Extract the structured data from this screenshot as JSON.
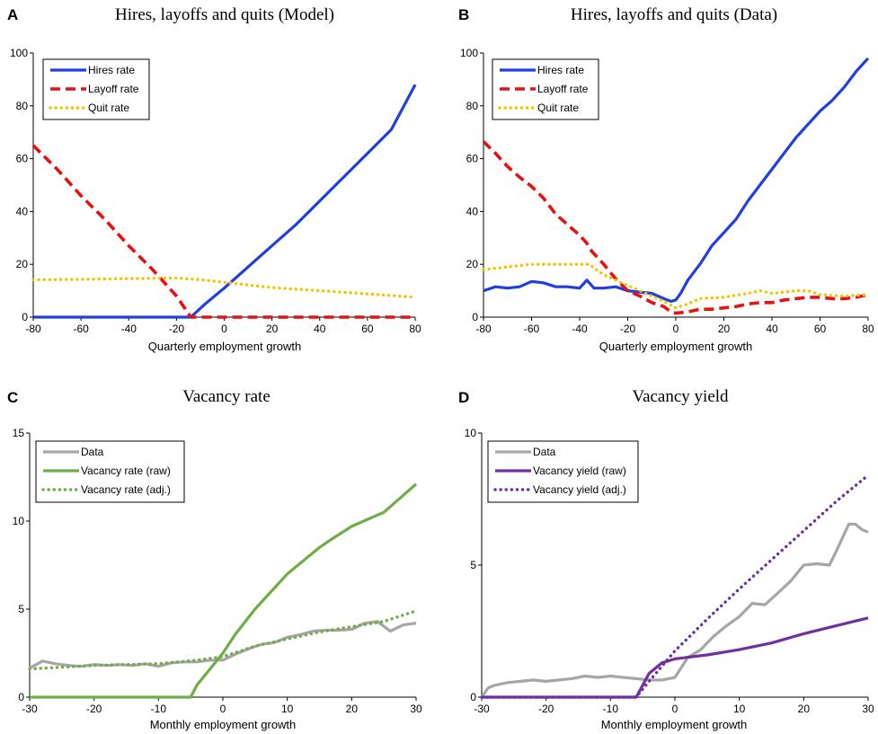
{
  "chart_data": [
    {
      "panel": "A",
      "type": "line",
      "title": "Hires, layoffs and quits (Model)",
      "xlabel": "Quarterly employment growth",
      "ylabel": "",
      "xlim": [
        -80,
        80
      ],
      "ylim": [
        0,
        100
      ],
      "xticks": [
        -80,
        -60,
        -40,
        -20,
        0,
        20,
        40,
        60,
        80
      ],
      "yticks": [
        0,
        20,
        40,
        60,
        80,
        100
      ],
      "legend": "top-left",
      "series": [
        {
          "name": "Hires rate",
          "color": "#1f3fe0",
          "style": "solid",
          "points": [
            [
              -80,
              0
            ],
            [
              -14,
              0
            ],
            [
              -8,
              5
            ],
            [
              0,
              11
            ],
            [
              10,
              19
            ],
            [
              20,
              27
            ],
            [
              30,
              35
            ],
            [
              40,
              44
            ],
            [
              50,
              53
            ],
            [
              60,
              62
            ],
            [
              70,
              71
            ],
            [
              80,
              88
            ]
          ]
        },
        {
          "name": "Layoff rate",
          "color": "#e81010",
          "style": "dashed",
          "points": [
            [
              -80,
              65
            ],
            [
              -70,
              56
            ],
            [
              -60,
              46
            ],
            [
              -50,
              37
            ],
            [
              -40,
              27
            ],
            [
              -30,
              18
            ],
            [
              -20,
              8
            ],
            [
              -14,
              0
            ],
            [
              0,
              0
            ],
            [
              80,
              0
            ]
          ]
        },
        {
          "name": "Quit rate",
          "color": "#f5c400",
          "style": "dotted",
          "points": [
            [
              -80,
              14.2
            ],
            [
              -60,
              14.3
            ],
            [
              -40,
              14.6
            ],
            [
              -20,
              14.8
            ],
            [
              -10,
              14.2
            ],
            [
              0,
              13.2
            ],
            [
              20,
              11.2
            ],
            [
              40,
              10
            ],
            [
              60,
              8.8
            ],
            [
              80,
              7.5
            ]
          ]
        }
      ]
    },
    {
      "panel": "B",
      "type": "line",
      "title": "Hires, layoffs and quits (Data)",
      "xlabel": "Quarterly employment growth",
      "ylabel": "",
      "xlim": [
        -80,
        80
      ],
      "ylim": [
        0,
        100
      ],
      "xticks": [
        -80,
        -60,
        -40,
        -20,
        0,
        20,
        40,
        60,
        80
      ],
      "yticks": [
        0,
        20,
        40,
        60,
        80,
        100
      ],
      "legend": "top-left",
      "series": [
        {
          "name": "Hires rate",
          "color": "#1f3fe0",
          "style": "solid",
          "points": [
            [
              -80,
              10
            ],
            [
              -75,
              11.5
            ],
            [
              -70,
              11
            ],
            [
              -65,
              11.5
            ],
            [
              -60,
              13.5
            ],
            [
              -55,
              13
            ],
            [
              -50,
              11.5
            ],
            [
              -45,
              11.5
            ],
            [
              -40,
              11
            ],
            [
              -37,
              14
            ],
            [
              -34,
              11
            ],
            [
              -30,
              11
            ],
            [
              -25,
              11.5
            ],
            [
              -20,
              10
            ],
            [
              -15,
              9.5
            ],
            [
              -10,
              9
            ],
            [
              -5,
              7
            ],
            [
              -2,
              6
            ],
            [
              0,
              6.5
            ],
            [
              2,
              9
            ],
            [
              5,
              14
            ],
            [
              10,
              20
            ],
            [
              15,
              27
            ],
            [
              20,
              32
            ],
            [
              25,
              37
            ],
            [
              30,
              44
            ],
            [
              35,
              50
            ],
            [
              40,
              56
            ],
            [
              45,
              62
            ],
            [
              50,
              68
            ],
            [
              55,
              73
            ],
            [
              60,
              78
            ],
            [
              65,
              82
            ],
            [
              70,
              87
            ],
            [
              75,
              93
            ],
            [
              80,
              98
            ]
          ]
        },
        {
          "name": "Layoff rate",
          "color": "#e81010",
          "style": "dashed",
          "points": [
            [
              -80,
              66.5
            ],
            [
              -75,
              62
            ],
            [
              -70,
              57
            ],
            [
              -65,
              53
            ],
            [
              -60,
              49.5
            ],
            [
              -55,
              45
            ],
            [
              -50,
              39
            ],
            [
              -45,
              35
            ],
            [
              -40,
              31
            ],
            [
              -37,
              28
            ],
            [
              -35,
              25
            ],
            [
              -30,
              20
            ],
            [
              -25,
              14.5
            ],
            [
              -20,
              10
            ],
            [
              -15,
              8
            ],
            [
              -10,
              5.5
            ],
            [
              -5,
              4
            ],
            [
              -2,
              2
            ],
            [
              0,
              1.5
            ],
            [
              5,
              2
            ],
            [
              10,
              3
            ],
            [
              15,
              3
            ],
            [
              20,
              3.5
            ],
            [
              25,
              4
            ],
            [
              30,
              5
            ],
            [
              35,
              5.5
            ],
            [
              40,
              5.5
            ],
            [
              45,
              6.5
            ],
            [
              50,
              7
            ],
            [
              55,
              7.5
            ],
            [
              60,
              7.5
            ],
            [
              65,
              7
            ],
            [
              70,
              7
            ],
            [
              75,
              7.5
            ],
            [
              80,
              8.5
            ]
          ]
        },
        {
          "name": "Quit rate",
          "color": "#f5c400",
          "style": "dotted",
          "points": [
            [
              -80,
              18
            ],
            [
              -70,
              19
            ],
            [
              -60,
              20
            ],
            [
              -50,
              20
            ],
            [
              -40,
              20
            ],
            [
              -36,
              20
            ],
            [
              -30,
              16
            ],
            [
              -20,
              12
            ],
            [
              -10,
              8
            ],
            [
              -5,
              6
            ],
            [
              0,
              3.5
            ],
            [
              5,
              5
            ],
            [
              10,
              7
            ],
            [
              20,
              7.5
            ],
            [
              30,
              9
            ],
            [
              35,
              10
            ],
            [
              40,
              9
            ],
            [
              50,
              10
            ],
            [
              55,
              10
            ],
            [
              60,
              8.5
            ],
            [
              70,
              8
            ],
            [
              80,
              8.5
            ]
          ]
        }
      ]
    },
    {
      "panel": "C",
      "type": "line",
      "title": "Vacancy rate",
      "xlabel": "Monthly employment growth",
      "ylabel": "",
      "xlim": [
        -30,
        30
      ],
      "ylim": [
        0,
        15
      ],
      "xticks": [
        -30,
        -20,
        -10,
        0,
        10,
        20,
        30
      ],
      "yticks": [
        0,
        5,
        10,
        15
      ],
      "legend": "top-left",
      "series": [
        {
          "name": "Data",
          "color": "#a6a6a6",
          "style": "solid",
          "points": [
            [
              -30,
              1.65
            ],
            [
              -28,
              2.05
            ],
            [
              -26,
              1.9
            ],
            [
              -24,
              1.8
            ],
            [
              -22,
              1.75
            ],
            [
              -20,
              1.85
            ],
            [
              -18,
              1.8
            ],
            [
              -16,
              1.85
            ],
            [
              -14,
              1.8
            ],
            [
              -12,
              1.9
            ],
            [
              -10,
              1.75
            ],
            [
              -8,
              1.95
            ],
            [
              -6,
              2.0
            ],
            [
              -4,
              2.0
            ],
            [
              -2,
              2.1
            ],
            [
              0,
              2.1
            ],
            [
              2,
              2.45
            ],
            [
              4,
              2.75
            ],
            [
              6,
              3.0
            ],
            [
              8,
              3.1
            ],
            [
              10,
              3.4
            ],
            [
              12,
              3.55
            ],
            [
              14,
              3.75
            ],
            [
              16,
              3.8
            ],
            [
              18,
              3.8
            ],
            [
              20,
              3.85
            ],
            [
              22,
              4.2
            ],
            [
              24,
              4.3
            ],
            [
              26,
              3.75
            ],
            [
              28,
              4.1
            ],
            [
              30,
              4.2
            ]
          ]
        },
        {
          "name": "Vacancy rate (raw)",
          "color": "#70ad47",
          "style": "solid",
          "points": [
            [
              -30,
              0
            ],
            [
              -5,
              0
            ],
            [
              -4,
              0.7
            ],
            [
              -2,
              1.6
            ],
            [
              0,
              2.5
            ],
            [
              2,
              3.6
            ],
            [
              5,
              5.0
            ],
            [
              10,
              7.0
            ],
            [
              15,
              8.5
            ],
            [
              17,
              9.0
            ],
            [
              20,
              9.7
            ],
            [
              25,
              10.5
            ],
            [
              30,
              12.1
            ]
          ]
        },
        {
          "name": "Vacancy rate (adj.)",
          "color": "#70ad47",
          "style": "dotted",
          "points": [
            [
              -30,
              1.6
            ],
            [
              -20,
              1.8
            ],
            [
              -10,
              1.9
            ],
            [
              -4,
              2.1
            ],
            [
              0,
              2.3
            ],
            [
              5,
              2.9
            ],
            [
              10,
              3.3
            ],
            [
              15,
              3.7
            ],
            [
              20,
              4.0
            ],
            [
              25,
              4.3
            ],
            [
              30,
              4.9
            ]
          ]
        }
      ]
    },
    {
      "panel": "D",
      "type": "line",
      "title": "Vacancy yield",
      "xlabel": "Monthly employment growth",
      "ylabel": "",
      "xlim": [
        -30,
        30
      ],
      "ylim": [
        0,
        10
      ],
      "xticks": [
        -30,
        -20,
        -10,
        0,
        10,
        20,
        30
      ],
      "yticks": [
        0,
        5,
        10
      ],
      "legend": "top-left",
      "series": [
        {
          "name": "Data",
          "color": "#a6a6a6",
          "style": "solid",
          "points": [
            [
              -30,
              0.0
            ],
            [
              -29,
              0.35
            ],
            [
              -28,
              0.45
            ],
            [
              -26,
              0.55
            ],
            [
              -24,
              0.6
            ],
            [
              -22,
              0.65
            ],
            [
              -20,
              0.6
            ],
            [
              -18,
              0.65
            ],
            [
              -16,
              0.7
            ],
            [
              -14,
              0.8
            ],
            [
              -12,
              0.75
            ],
            [
              -10,
              0.8
            ],
            [
              -8,
              0.75
            ],
            [
              -6,
              0.7
            ],
            [
              -4,
              0.65
            ],
            [
              -2,
              0.65
            ],
            [
              0,
              0.75
            ],
            [
              2,
              1.5
            ],
            [
              4,
              1.8
            ],
            [
              6,
              2.3
            ],
            [
              8,
              2.7
            ],
            [
              10,
              3.05
            ],
            [
              12,
              3.55
            ],
            [
              14,
              3.5
            ],
            [
              16,
              3.95
            ],
            [
              18,
              4.4
            ],
            [
              20,
              5.0
            ],
            [
              22,
              5.05
            ],
            [
              24,
              5.0
            ],
            [
              25,
              5.5
            ],
            [
              27,
              6.55
            ],
            [
              28,
              6.55
            ],
            [
              29,
              6.35
            ],
            [
              30,
              6.25
            ]
          ]
        },
        {
          "name": "Vacancy yield (raw)",
          "color": "#7030a0",
          "style": "solid",
          "points": [
            [
              -30,
              0
            ],
            [
              -6,
              0
            ],
            [
              -4,
              0.9
            ],
            [
              -2,
              1.3
            ],
            [
              0,
              1.45
            ],
            [
              5,
              1.6
            ],
            [
              10,
              1.8
            ],
            [
              15,
              2.05
            ],
            [
              20,
              2.4
            ],
            [
              25,
              2.7
            ],
            [
              30,
              3.0
            ]
          ]
        },
        {
          "name": "Vacancy yield (adj.)",
          "color": "#7030a0",
          "style": "dotted",
          "points": [
            [
              -30,
              0
            ],
            [
              -6,
              0
            ],
            [
              -4,
              0.6
            ],
            [
              0,
              1.75
            ],
            [
              5,
              2.95
            ],
            [
              10,
              4.1
            ],
            [
              15,
              5.2
            ],
            [
              20,
              6.3
            ],
            [
              25,
              7.4
            ],
            [
              30,
              8.4
            ]
          ]
        }
      ]
    }
  ]
}
